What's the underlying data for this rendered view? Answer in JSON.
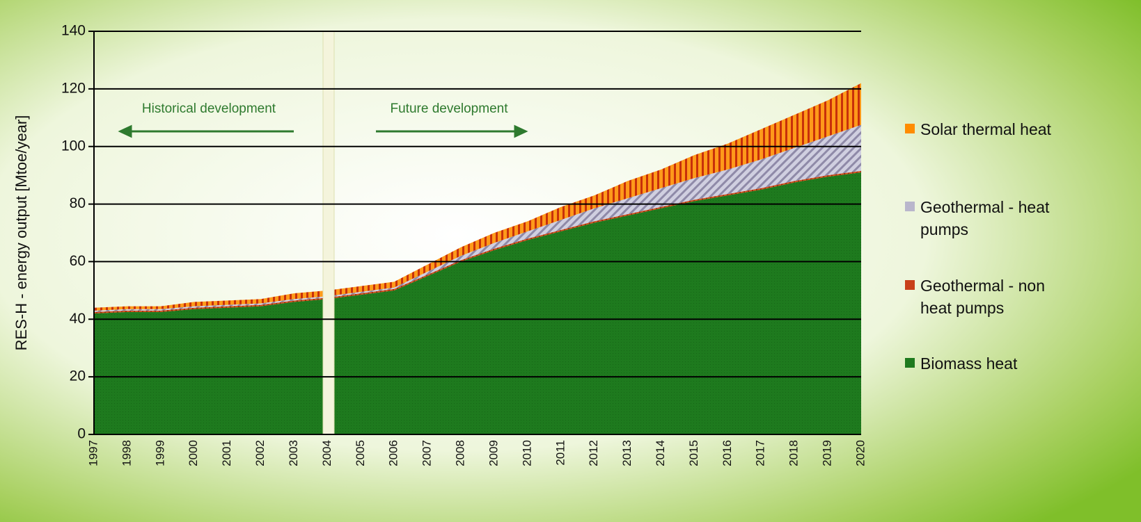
{
  "chart_data": {
    "type": "area",
    "stacked": true,
    "y_label": "RES-H - energy output [Mtoe/year]",
    "annotations": [
      "Historical development",
      "Future development"
    ],
    "categories": [
      "1997",
      "1998",
      "1999",
      "2000",
      "2001",
      "2002",
      "2003",
      "2004",
      "2005",
      "2006",
      "2007",
      "2008",
      "2009",
      "2010",
      "2011",
      "2012",
      "2013",
      "2014",
      "2015",
      "2016",
      "2017",
      "2018",
      "2019",
      "2020"
    ],
    "series": [
      {
        "name": "Biomass heat",
        "color": "#1e7a1e",
        "values": [
          42,
          42.5,
          42.5,
          43.5,
          44,
          44.5,
          46,
          47,
          48.5,
          50,
          55,
          60,
          64,
          67.5,
          70.5,
          73.5,
          76,
          78.5,
          81,
          83,
          85,
          87.5,
          89.5,
          91
        ]
      },
      {
        "name": "Geothermal - non heat pumps",
        "color": "#c8401a",
        "values": [
          0.5,
          0.5,
          0.5,
          0.5,
          0.5,
          0.5,
          0.5,
          0.5,
          0.5,
          0.5,
          0.5,
          0.5,
          0.5,
          0.5,
          0.5,
          0.5,
          0.5,
          0.5,
          0.5,
          0.5,
          0.5,
          0.5,
          0.5,
          0.5
        ]
      },
      {
        "name": "Geothermal - heat pumps",
        "color": "#b9b6cc",
        "values": [
          0.5,
          0.5,
          0.5,
          0.5,
          0.5,
          0.5,
          0.5,
          0.5,
          0.5,
          0.5,
          1,
          1.5,
          2,
          2.5,
          3.5,
          4.5,
          5.5,
          6.5,
          7.5,
          8.5,
          10,
          11.5,
          13.5,
          16
        ]
      },
      {
        "name": "Solar thermal heat",
        "color": "#ff8c00",
        "values": [
          1,
          1,
          1,
          1.5,
          1.5,
          1.5,
          2,
          2,
          2,
          2,
          2.5,
          3,
          3.5,
          3.5,
          4.5,
          4.5,
          6,
          6.5,
          8,
          9,
          10.5,
          11.5,
          12.5,
          14.5
        ]
      }
    ],
    "ylim": [
      0,
      140
    ],
    "yticks": [
      0,
      20,
      40,
      60,
      80,
      100,
      120,
      140
    ],
    "grid": true
  }
}
